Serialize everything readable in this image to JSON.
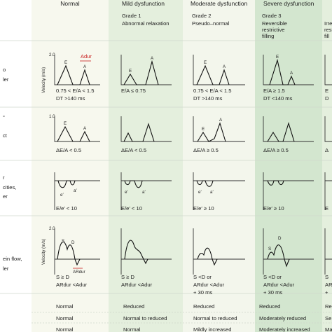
{
  "columns": [
    {
      "header": "Normal",
      "grade": "",
      "sub": []
    },
    {
      "header": "Mild dysfunction",
      "grade": "Grade 1",
      "sub": [
        "Abnormal relaxation"
      ]
    },
    {
      "header": "Moderate dysfunction",
      "grade": "Grade 2",
      "sub": [
        "Pseudo–normal"
      ]
    },
    {
      "header": "Severe dysfunction",
      "grade": "Grade 3",
      "sub": [
        "Reversible",
        "restrictive",
        "filling"
      ]
    },
    {
      "header": "",
      "grade": "",
      "sub": [
        "Irre",
        "rest",
        "fill"
      ]
    }
  ],
  "row_labels": [
    [
      "o",
      "ler"
    ],
    [
      "°",
      "ct"
    ],
    [
      "r",
      "cities,",
      "er"
    ],
    [
      "ein flow,",
      "ler"
    ]
  ],
  "axis": {
    "velocity": "Velocity (m/s)",
    "max_2": "2.0",
    "max_1": "1.0",
    "adur": "Adur"
  },
  "wave_labels": {
    "E": "E",
    "A": "A",
    "e": "e′",
    "a": "a′",
    "S": "S",
    "D": "D",
    "ardur": "ARdur"
  },
  "criteria": {
    "mitral": [
      [
        "0.75 < E/A < 1.5",
        "DT >140 ms"
      ],
      [
        "E/A ≤ 0.75"
      ],
      [
        "0.75 < E/A < 1.5",
        "DT >140 ms"
      ],
      [
        "E/A ≥ 1.5",
        "DT <140 ms"
      ],
      [
        "E",
        "D"
      ]
    ],
    "valsalva": [
      [
        "ΔE/A < 0.5"
      ],
      [
        "ΔE/A < 0.5"
      ],
      [
        "ΔE/A ≥ 0.5"
      ],
      [
        "ΔE/A ≥ 0.5"
      ],
      [
        "Δ"
      ]
    ],
    "tissue": [
      [
        "E/e′ < 10"
      ],
      [
        "E/e′ < 10"
      ],
      [
        "E/e′ ≥ 10"
      ],
      [
        "E/e′ ≥ 10"
      ],
      [
        "E"
      ]
    ],
    "pulmonary": [
      [
        "S ≥ D",
        "ARdur <Adur"
      ],
      [
        "S ≥ D",
        "ARdur <Adur"
      ],
      [
        "S <D or",
        "ARdur <Adur",
        "+ 30 ms"
      ],
      [
        "S <D or",
        "ARdur <Adur",
        "+ 30 ms"
      ],
      [
        "S",
        "AR",
        "+"
      ]
    ]
  },
  "bottom": [
    [
      "Normal",
      "Reduced",
      "Reduced",
      "Reduced",
      "Re"
    ],
    [
      "Normal",
      "Normal to reduced",
      "Normal to reduced",
      "Moderately reduced",
      "Se"
    ],
    [
      "Normal",
      "Normal",
      "Mildly increased",
      "Moderately increased",
      "Ma"
    ]
  ],
  "colors": {
    "col0": "#f7f8ee",
    "col1": "#e4efdd",
    "col2": "#f3f6ec",
    "col3": "#d3e6cf",
    "col4": "#e4efdd",
    "adur": "#c81e1e"
  }
}
